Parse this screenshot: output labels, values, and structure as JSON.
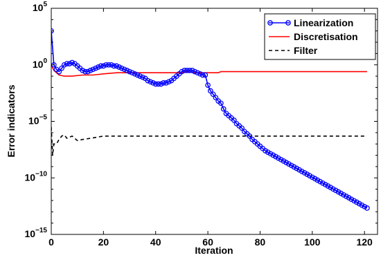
{
  "chart_data": {
    "type": "line",
    "title": "",
    "xlabel": "Iteration",
    "ylabel": "Error indicators",
    "xlim": [
      0,
      125
    ],
    "ylim_log10": [
      -15,
      5
    ],
    "yscale": "log",
    "grid": false,
    "legend_position": "top-right",
    "x_ticks": [
      "0",
      "20",
      "40",
      "60",
      "80",
      "100",
      "120"
    ],
    "y_ticks": [
      {
        "base": "10",
        "exp": "5",
        "log10": 5
      },
      {
        "base": "10",
        "exp": "0",
        "log10": 0
      },
      {
        "base": "10",
        "exp": "−5",
        "log10": -5
      },
      {
        "base": "10",
        "exp": "−10",
        "log10": -10
      },
      {
        "base": "10",
        "exp": "−15",
        "log10": -15
      }
    ],
    "series": [
      {
        "name": "Linearization",
        "color": "#0000ff",
        "style": "solid-circle-markers",
        "x": [
          0,
          1,
          2,
          3,
          4,
          5,
          6,
          7,
          8,
          9,
          10,
          11,
          12,
          13,
          14,
          15,
          16,
          17,
          18,
          19,
          20,
          21,
          22,
          23,
          24,
          25,
          26,
          27,
          28,
          29,
          30,
          31,
          32,
          33,
          34,
          35,
          36,
          37,
          38,
          39,
          40,
          41,
          42,
          43,
          44,
          45,
          46,
          47,
          48,
          49,
          50,
          51,
          52,
          53,
          54,
          55,
          56,
          57,
          58,
          59,
          60,
          61,
          62,
          63,
          64,
          65,
          66,
          67,
          68,
          69,
          70,
          71,
          72,
          73,
          74,
          75,
          76,
          77,
          78,
          79,
          80,
          81,
          82,
          83,
          84,
          85,
          86,
          87,
          88,
          89,
          90,
          91,
          92,
          93,
          94,
          95,
          96,
          97,
          98,
          99,
          100,
          101,
          102,
          103,
          104,
          105,
          106,
          107,
          108,
          109,
          110,
          111,
          112,
          113,
          114,
          115,
          116,
          117,
          118,
          119,
          120,
          121
        ],
        "log10_y": [
          3.0,
          0.0,
          -0.4,
          -0.6,
          -0.3,
          0.0,
          0.1,
          0.1,
          0.2,
          0.1,
          -0.1,
          -0.3,
          -0.5,
          -0.6,
          -0.6,
          -0.5,
          -0.4,
          -0.3,
          -0.2,
          -0.1,
          -0.1,
          0.0,
          0.0,
          0.0,
          -0.1,
          -0.1,
          -0.2,
          -0.3,
          -0.4,
          -0.5,
          -0.6,
          -0.7,
          -0.8,
          -0.9,
          -1.0,
          -1.1,
          -1.2,
          -1.4,
          -1.5,
          -1.6,
          -1.7,
          -1.7,
          -1.7,
          -1.6,
          -1.6,
          -1.5,
          -1.4,
          -1.2,
          -1.0,
          -0.8,
          -0.6,
          -0.5,
          -0.5,
          -0.5,
          -0.5,
          -0.6,
          -0.7,
          -0.8,
          -0.9,
          -0.9,
          -1.8,
          -2.3,
          -2.6,
          -2.9,
          -3.2,
          -3.4,
          -3.9,
          -4.3,
          -4.5,
          -4.7,
          -4.9,
          -5.2,
          -5.4,
          -5.6,
          -5.9,
          -6.1,
          -6.3,
          -6.6,
          -6.8,
          -7.0,
          -7.2,
          -7.4,
          -7.6,
          -7.73,
          -7.86,
          -7.99,
          -8.12,
          -8.25,
          -8.38,
          -8.51,
          -8.64,
          -8.77,
          -8.9,
          -9.03,
          -9.16,
          -9.29,
          -9.42,
          -9.55,
          -9.68,
          -9.81,
          -9.94,
          -10.07,
          -10.2,
          -10.33,
          -10.46,
          -10.59,
          -10.72,
          -10.85,
          -10.98,
          -11.11,
          -11.24,
          -11.37,
          -11.5,
          -11.63,
          -11.76,
          -11.89,
          -12.02,
          -12.15,
          -12.28,
          -12.41,
          -12.54,
          -12.67
        ]
      },
      {
        "name": "Discretisation",
        "color": "#ff0000",
        "style": "solid",
        "x": [
          0,
          1,
          2,
          3,
          5,
          8,
          12,
          16,
          20,
          25,
          30,
          35,
          40,
          45,
          50,
          52,
          55,
          60,
          64,
          65,
          70,
          80,
          90,
          100,
          110,
          121
        ],
        "log10_y": [
          0.0,
          -0.5,
          -0.7,
          -0.9,
          -1.0,
          -1.0,
          -0.9,
          -0.9,
          -0.8,
          -0.7,
          -0.7,
          -0.7,
          -0.7,
          -0.7,
          -0.7,
          -0.6,
          -0.7,
          -0.7,
          -0.7,
          -0.6,
          -0.6,
          -0.6,
          -0.6,
          -0.6,
          -0.6,
          -0.6
        ]
      },
      {
        "name": "Filter",
        "color": "#000000",
        "style": "dashed",
        "x": [
          0,
          0.5,
          1,
          2,
          3,
          4,
          5,
          6,
          8,
          10,
          12,
          15,
          20,
          25,
          30,
          40,
          50,
          60,
          70,
          80,
          90,
          100,
          110,
          121
        ],
        "log10_y": [
          -5.5,
          -8.0,
          -7.0,
          -7.0,
          -6.6,
          -6.3,
          -6.2,
          -6.5,
          -6.3,
          -6.7,
          -6.6,
          -6.5,
          -6.3,
          -6.3,
          -6.3,
          -6.3,
          -6.3,
          -6.3,
          -6.3,
          -6.3,
          -6.3,
          -6.3,
          -6.3,
          -6.3
        ]
      }
    ]
  }
}
